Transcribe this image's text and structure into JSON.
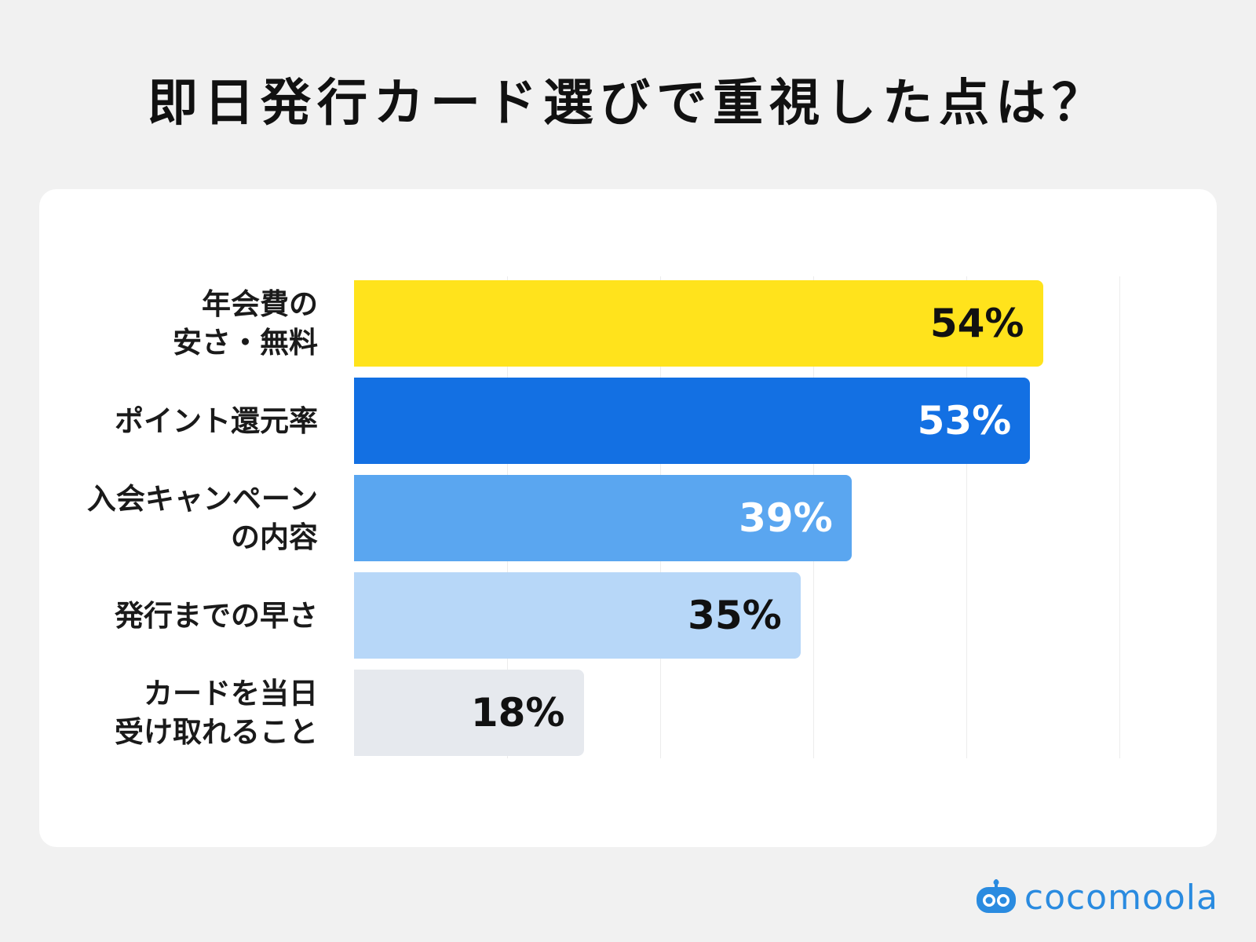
{
  "chart_data": {
    "type": "bar",
    "orientation": "horizontal",
    "title": "即日発行カード選びで重視した点は？",
    "categories": [
      [
        "年会費の",
        "安さ・無料"
      ],
      [
        "ポイント還元率"
      ],
      [
        "入会キャンペーン",
        "の内容"
      ],
      [
        "発行までの早さ"
      ],
      [
        "カードを当日",
        "受け取れること"
      ]
    ],
    "values": [
      54,
      53,
      39,
      35,
      18
    ],
    "value_labels": [
      "54%",
      "53%",
      "39%",
      "35%",
      "18%"
    ],
    "bar_colors": [
      "#ffe31c",
      "#1370e3",
      "#5aa6f0",
      "#b7d7f8",
      "#e6e9ee"
    ],
    "label_colors": [
      "#111111",
      "#ffffff",
      "#ffffff",
      "#111111",
      "#111111"
    ],
    "xlim": [
      0,
      60
    ],
    "grid": true,
    "legend": "none"
  },
  "brand": {
    "name": "cocomoola",
    "color": "#2a8be0"
  }
}
